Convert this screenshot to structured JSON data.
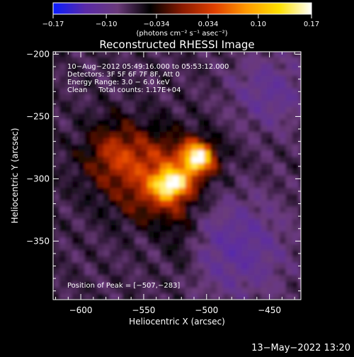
{
  "chart_data": {
    "type": "heatmap",
    "title": "Reconstructed RHESSI Image",
    "xlabel": "Heliocentric X (arcsec)",
    "ylabel": "Heliocentric Y (arcsec)",
    "xlim": [
      -622,
      -425
    ],
    "ylim": [
      -397,
      -198
    ],
    "xticks": [
      -600,
      -550,
      -500,
      -450
    ],
    "xtick_labels": [
      "−600",
      "−550",
      "−500",
      "−450"
    ],
    "yticks": [
      -200,
      -250,
      -300,
      -350
    ],
    "ytick_labels": [
      "−200",
      "−250",
      "−300",
      "−350"
    ],
    "colorbar": {
      "range": [
        -0.17,
        0.17
      ],
      "ticks": [
        -0.17,
        -0.1,
        -0.034,
        0.034,
        0.1,
        0.17
      ],
      "tick_labels": [
        "−0.17",
        "−0.10",
        "−0.034",
        "0.034",
        "0.10",
        "0.17"
      ],
      "unit_label": "(photons cm⁻² s⁻¹ asec⁻²)",
      "stops": [
        "#0a1cff",
        "#5a2aa8",
        "#6a3a7a",
        "#000000",
        "#8a1a00",
        "#e04000",
        "#ff9a00",
        "#ffe000",
        "#ffffff"
      ]
    },
    "annotations": [
      "10−Aug−2012 05:49:16.000 to 05:53:12.000",
      "Detectors: 3F 5F 6F 7F 8F, Att 0",
      "Energy Range: 3.0 − 6.0 keV",
      "Clean     Total counts: 1.17E+04"
    ],
    "peak_label": "Position of Peak = [−507,−283]",
    "sources": [
      {
        "x": -507,
        "y": -283,
        "intensity": 0.17
      },
      {
        "x": -528,
        "y": -304,
        "intensity": 0.15
      }
    ],
    "grid": false
  },
  "footer": {
    "datetime": "13−May−2022 13:20"
  }
}
